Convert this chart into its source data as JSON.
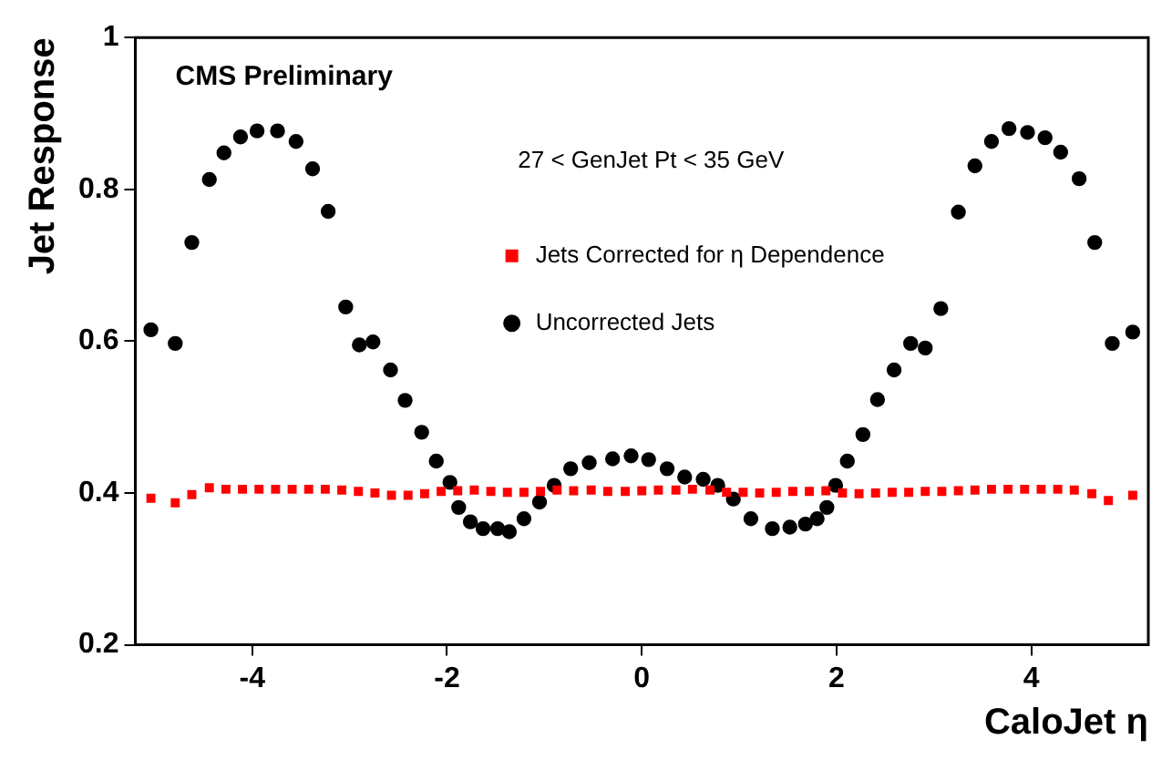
{
  "chart_data": {
    "type": "scatter",
    "xlabel": "CaloJet η",
    "ylabel": "Jet Response",
    "annotations": [
      "CMS Preliminary",
      "27 < GenJet Pt < 35 GeV"
    ],
    "xlim": [
      -5.2,
      5.2
    ],
    "xticks": [
      -4,
      -2,
      0,
      2,
      4
    ],
    "ylim": [
      0.2,
      1
    ],
    "yticks": [
      0.2,
      0.4,
      0.6,
      0.8,
      1
    ],
    "grid": false,
    "legend": "top",
    "series": [
      {
        "name": "Uncorrected Jets",
        "color": "#000000",
        "marker": "circle",
        "x": [
          -5.04,
          -4.79,
          -4.62,
          -4.44,
          -4.29,
          -4.12,
          -3.95,
          -3.74,
          -3.55,
          -3.38,
          -3.22,
          -3.04,
          -2.9,
          -2.76,
          -2.58,
          -2.43,
          -2.26,
          -2.11,
          -1.97,
          -1.88,
          -1.76,
          -1.63,
          -1.48,
          -1.36,
          -1.21,
          -1.05,
          -0.9,
          -0.73,
          -0.54,
          -0.3,
          -0.11,
          0.07,
          0.26,
          0.44,
          0.63,
          0.78,
          0.94,
          1.12,
          1.34,
          1.52,
          1.68,
          1.8,
          1.9,
          1.99,
          2.11,
          2.27,
          2.42,
          2.59,
          2.76,
          2.91,
          3.07,
          3.25,
          3.42,
          3.59,
          3.77,
          3.96,
          4.14,
          4.3,
          4.49,
          4.65,
          4.83,
          5.04
        ],
        "values": [
          0.615,
          0.597,
          0.73,
          0.813,
          0.848,
          0.869,
          0.877,
          0.877,
          0.863,
          0.827,
          0.771,
          0.645,
          0.595,
          0.599,
          0.562,
          0.522,
          0.48,
          0.442,
          0.414,
          0.381,
          0.362,
          0.353,
          0.353,
          0.349,
          0.366,
          0.388,
          0.41,
          0.432,
          0.44,
          0.445,
          0.449,
          0.444,
          0.432,
          0.421,
          0.418,
          0.41,
          0.392,
          0.366,
          0.353,
          0.355,
          0.359,
          0.366,
          0.381,
          0.41,
          0.442,
          0.477,
          0.523,
          0.562,
          0.597,
          0.591,
          0.643,
          0.77,
          0.831,
          0.863,
          0.88,
          0.875,
          0.868,
          0.849,
          0.814,
          0.73,
          0.597,
          0.612
        ]
      },
      {
        "name": "Jets Corrected for η Dependence",
        "color": "#ff0000",
        "marker": "square",
        "x": [
          -5.04,
          -4.79,
          -4.62,
          -4.44,
          -4.27,
          -4.1,
          -3.93,
          -3.76,
          -3.59,
          -3.42,
          -3.25,
          -3.08,
          -2.91,
          -2.74,
          -2.57,
          -2.4,
          -2.23,
          -2.06,
          -1.89,
          -1.72,
          -1.55,
          -1.38,
          -1.21,
          -1.04,
          -0.87,
          -0.7,
          -0.52,
          -0.35,
          -0.17,
          0,
          0.17,
          0.35,
          0.52,
          0.7,
          0.87,
          1.04,
          1.21,
          1.38,
          1.55,
          1.72,
          1.89,
          2.06,
          2.23,
          2.4,
          2.57,
          2.74,
          2.91,
          3.08,
          3.25,
          3.42,
          3.59,
          3.76,
          3.93,
          4.1,
          4.27,
          4.44,
          4.62,
          4.79,
          5.04
        ],
        "values": [
          0.393,
          0.387,
          0.398,
          0.407,
          0.405,
          0.405,
          0.405,
          0.405,
          0.405,
          0.405,
          0.405,
          0.404,
          0.402,
          0.4,
          0.397,
          0.397,
          0.399,
          0.402,
          0.403,
          0.404,
          0.402,
          0.401,
          0.401,
          0.402,
          0.404,
          0.403,
          0.404,
          0.402,
          0.402,
          0.403,
          0.404,
          0.404,
          0.405,
          0.404,
          0.401,
          0.401,
          0.4,
          0.401,
          0.402,
          0.402,
          0.403,
          0.4,
          0.399,
          0.4,
          0.401,
          0.401,
          0.402,
          0.402,
          0.403,
          0.404,
          0.405,
          0.405,
          0.405,
          0.405,
          0.405,
          0.404,
          0.399,
          0.39,
          0.397
        ]
      }
    ]
  }
}
